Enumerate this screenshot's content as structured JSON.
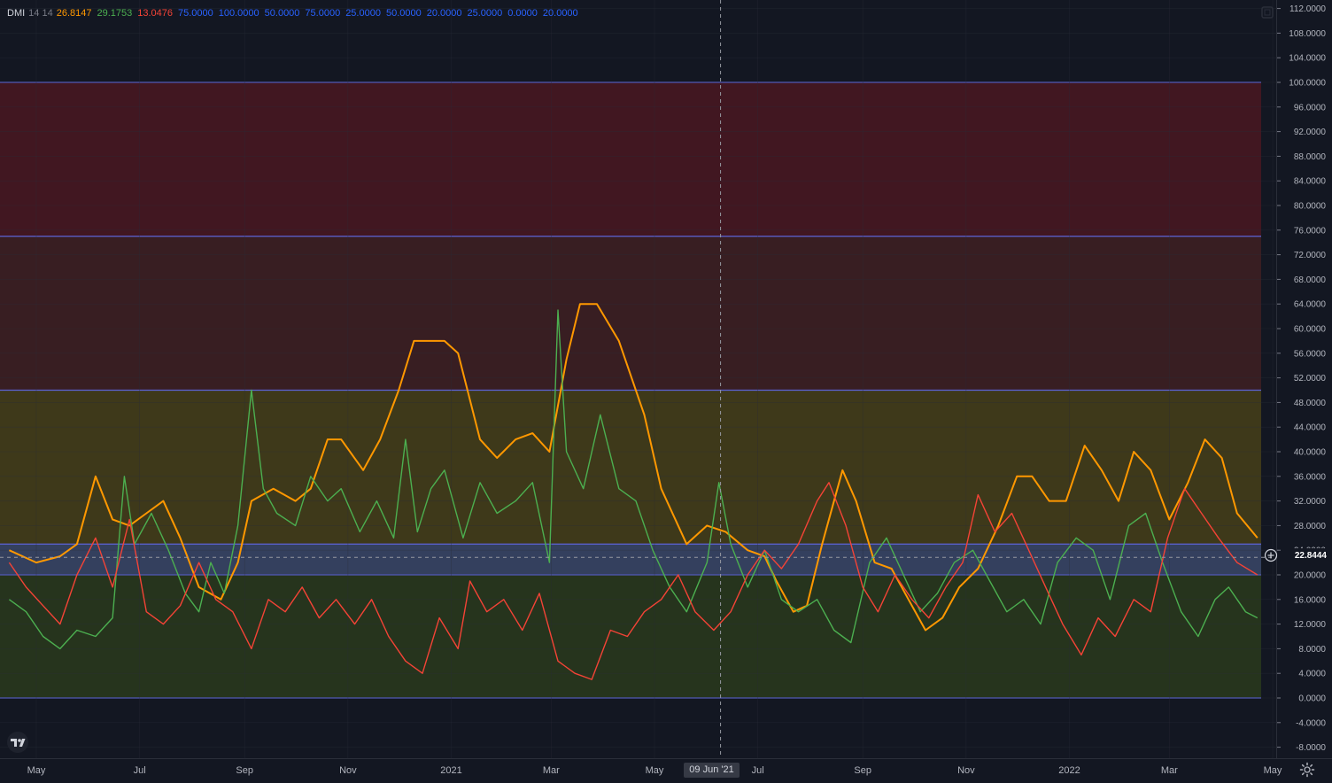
{
  "legend": {
    "indicator": "DMI",
    "params": "14 14",
    "values": [
      {
        "text": "26.8147",
        "color": "#ff9800"
      },
      {
        "text": "29.1753",
        "color": "#4caf50"
      },
      {
        "text": "13.0476",
        "color": "#f44336"
      },
      {
        "text": "75.0000",
        "color": "#2962ff"
      },
      {
        "text": "100.0000",
        "color": "#2962ff"
      },
      {
        "text": "50.0000",
        "color": "#2962ff"
      },
      {
        "text": "75.0000",
        "color": "#2962ff"
      },
      {
        "text": "25.0000",
        "color": "#2962ff"
      },
      {
        "text": "50.0000",
        "color": "#2962ff"
      },
      {
        "text": "20.0000",
        "color": "#2962ff"
      },
      {
        "text": "25.0000",
        "color": "#2962ff"
      },
      {
        "text": "0.0000",
        "color": "#2962ff"
      },
      {
        "text": "20.0000",
        "color": "#2962ff"
      }
    ]
  },
  "cursor": {
    "date_label": "09 Jun '21"
  },
  "last_value_label": "22.8444",
  "chart_data": {
    "type": "line",
    "x_range": [
      "2020-04-15",
      "2022-05-01"
    ],
    "ylim": [
      -9,
      113
    ],
    "y_ticks": [
      112,
      108,
      104,
      100,
      96,
      92,
      88,
      84,
      80,
      76,
      72,
      68,
      64,
      60,
      56,
      52,
      48,
      44,
      40,
      36,
      32,
      28,
      24,
      20,
      16,
      12,
      8,
      4,
      0,
      -4,
      -8
    ],
    "x_ticks": [
      {
        "label": "May",
        "date": "2020-05-01"
      },
      {
        "label": "Jul",
        "date": "2020-07-01"
      },
      {
        "label": "Sep",
        "date": "2020-09-01"
      },
      {
        "label": "Nov",
        "date": "2020-11-01"
      },
      {
        "label": "2021",
        "date": "2021-01-01"
      },
      {
        "label": "Mar",
        "date": "2021-03-01"
      },
      {
        "label": "May",
        "date": "2021-05-01"
      },
      {
        "label": "Jul",
        "date": "2021-07-01"
      },
      {
        "label": "Sep",
        "date": "2021-09-01"
      },
      {
        "label": "Nov",
        "date": "2021-11-01"
      },
      {
        "label": "2022",
        "date": "2022-01-01"
      },
      {
        "label": "Mar",
        "date": "2022-03-01"
      },
      {
        "label": "May",
        "date": "2022-05-01"
      }
    ],
    "cursor_date": "2021-06-09",
    "bands": [
      {
        "from": 75,
        "to": 100,
        "color": "#801922",
        "opacity": 0.42
      },
      {
        "from": 50,
        "to": 75,
        "color": "#8a2e22",
        "opacity": 0.32
      },
      {
        "from": 25,
        "to": 50,
        "color": "#7a6a10",
        "opacity": 0.42
      },
      {
        "from": 20,
        "to": 25,
        "color": "#5d74a8",
        "opacity": 0.45
      },
      {
        "from": 0,
        "to": 20,
        "color": "#4a6b15",
        "opacity": 0.35
      }
    ],
    "band_lines": [
      100,
      75,
      50,
      25,
      20,
      0
    ],
    "series": [
      {
        "color": "#ff9800",
        "points": [
          [
            "2020-04-15",
            24
          ],
          [
            "2020-05-01",
            22
          ],
          [
            "2020-05-15",
            23
          ],
          [
            "2020-05-25",
            25
          ],
          [
            "2020-06-05",
            36
          ],
          [
            "2020-06-15",
            29
          ],
          [
            "2020-06-25",
            28
          ],
          [
            "2020-07-05",
            30
          ],
          [
            "2020-07-15",
            32
          ],
          [
            "2020-07-25",
            26
          ],
          [
            "2020-08-05",
            18
          ],
          [
            "2020-08-18",
            16
          ],
          [
            "2020-08-28",
            22
          ],
          [
            "2020-09-05",
            32
          ],
          [
            "2020-09-18",
            34
          ],
          [
            "2020-10-01",
            32
          ],
          [
            "2020-10-10",
            34
          ],
          [
            "2020-10-20",
            42
          ],
          [
            "2020-10-28",
            42
          ],
          [
            "2020-11-10",
            37
          ],
          [
            "2020-11-20",
            42
          ],
          [
            "2020-12-01",
            50
          ],
          [
            "2020-12-10",
            58
          ],
          [
            "2020-12-18",
            58
          ],
          [
            "2020-12-28",
            58
          ],
          [
            "2021-01-05",
            56
          ],
          [
            "2021-01-18",
            42
          ],
          [
            "2021-01-28",
            39
          ],
          [
            "2021-02-08",
            42
          ],
          [
            "2021-02-18",
            43
          ],
          [
            "2021-02-28",
            40
          ],
          [
            "2021-03-10",
            55
          ],
          [
            "2021-03-18",
            64
          ],
          [
            "2021-03-28",
            64
          ],
          [
            "2021-04-10",
            58
          ],
          [
            "2021-04-25",
            46
          ],
          [
            "2021-05-05",
            34
          ],
          [
            "2021-05-20",
            25
          ],
          [
            "2021-06-01",
            28
          ],
          [
            "2021-06-12",
            27
          ],
          [
            "2021-06-25",
            24
          ],
          [
            "2021-07-05",
            23
          ],
          [
            "2021-07-12",
            19
          ],
          [
            "2021-07-22",
            14
          ],
          [
            "2021-07-30",
            15
          ],
          [
            "2021-08-08",
            25
          ],
          [
            "2021-08-20",
            37
          ],
          [
            "2021-08-28",
            32
          ],
          [
            "2021-09-08",
            22
          ],
          [
            "2021-09-18",
            21
          ],
          [
            "2021-09-28",
            16
          ],
          [
            "2021-10-08",
            11
          ],
          [
            "2021-10-18",
            13
          ],
          [
            "2021-10-28",
            18
          ],
          [
            "2021-11-08",
            21
          ],
          [
            "2021-11-20",
            28
          ],
          [
            "2021-12-01",
            36
          ],
          [
            "2021-12-10",
            36
          ],
          [
            "2021-12-20",
            32
          ],
          [
            "2021-12-30",
            32
          ],
          [
            "2022-01-10",
            41
          ],
          [
            "2022-01-20",
            37
          ],
          [
            "2022-01-30",
            32
          ],
          [
            "2022-02-08",
            40
          ],
          [
            "2022-02-18",
            37
          ],
          [
            "2022-03-01",
            29
          ],
          [
            "2022-03-12",
            35
          ],
          [
            "2022-03-22",
            42
          ],
          [
            "2022-04-01",
            39
          ],
          [
            "2022-04-10",
            30
          ],
          [
            "2022-04-22",
            26
          ]
        ]
      },
      {
        "color": "#4caf50",
        "points": [
          [
            "2020-04-15",
            16
          ],
          [
            "2020-04-25",
            14
          ],
          [
            "2020-05-05",
            10
          ],
          [
            "2020-05-15",
            8
          ],
          [
            "2020-05-25",
            11
          ],
          [
            "2020-06-05",
            10
          ],
          [
            "2020-06-15",
            13
          ],
          [
            "2020-06-22",
            36
          ],
          [
            "2020-06-28",
            25
          ],
          [
            "2020-07-08",
            30
          ],
          [
            "2020-07-18",
            24
          ],
          [
            "2020-07-28",
            17
          ],
          [
            "2020-08-05",
            14
          ],
          [
            "2020-08-12",
            22
          ],
          [
            "2020-08-20",
            17
          ],
          [
            "2020-08-28",
            28
          ],
          [
            "2020-09-05",
            50
          ],
          [
            "2020-09-12",
            34
          ],
          [
            "2020-09-20",
            30
          ],
          [
            "2020-10-01",
            28
          ],
          [
            "2020-10-10",
            36
          ],
          [
            "2020-10-20",
            32
          ],
          [
            "2020-10-28",
            34
          ],
          [
            "2020-11-08",
            27
          ],
          [
            "2020-11-18",
            32
          ],
          [
            "2020-11-28",
            26
          ],
          [
            "2020-12-05",
            42
          ],
          [
            "2020-12-12",
            27
          ],
          [
            "2020-12-20",
            34
          ],
          [
            "2020-12-28",
            37
          ],
          [
            "2021-01-08",
            26
          ],
          [
            "2021-01-18",
            35
          ],
          [
            "2021-01-28",
            30
          ],
          [
            "2021-02-08",
            32
          ],
          [
            "2021-02-18",
            35
          ],
          [
            "2021-02-28",
            22
          ],
          [
            "2021-03-05",
            63
          ],
          [
            "2021-03-10",
            40
          ],
          [
            "2021-03-20",
            34
          ],
          [
            "2021-03-30",
            46
          ],
          [
            "2021-04-10",
            34
          ],
          [
            "2021-04-20",
            32
          ],
          [
            "2021-04-30",
            24
          ],
          [
            "2021-05-10",
            18
          ],
          [
            "2021-05-20",
            14
          ],
          [
            "2021-06-01",
            22
          ],
          [
            "2021-06-08",
            35
          ],
          [
            "2021-06-15",
            25
          ],
          [
            "2021-06-25",
            18
          ],
          [
            "2021-07-05",
            24
          ],
          [
            "2021-07-15",
            16
          ],
          [
            "2021-07-25",
            14
          ],
          [
            "2021-08-05",
            16
          ],
          [
            "2021-08-15",
            11
          ],
          [
            "2021-08-25",
            9
          ],
          [
            "2021-09-05",
            22
          ],
          [
            "2021-09-15",
            26
          ],
          [
            "2021-09-25",
            20
          ],
          [
            "2021-10-05",
            14
          ],
          [
            "2021-10-15",
            17
          ],
          [
            "2021-10-25",
            22
          ],
          [
            "2021-11-05",
            24
          ],
          [
            "2021-11-15",
            19
          ],
          [
            "2021-11-25",
            14
          ],
          [
            "2021-12-05",
            16
          ],
          [
            "2021-12-15",
            12
          ],
          [
            "2021-12-25",
            22
          ],
          [
            "2022-01-05",
            26
          ],
          [
            "2022-01-15",
            24
          ],
          [
            "2022-01-25",
            16
          ],
          [
            "2022-02-05",
            28
          ],
          [
            "2022-02-15",
            30
          ],
          [
            "2022-02-25",
            22
          ],
          [
            "2022-03-08",
            14
          ],
          [
            "2022-03-18",
            10
          ],
          [
            "2022-03-28",
            16
          ],
          [
            "2022-04-05",
            18
          ],
          [
            "2022-04-15",
            14
          ],
          [
            "2022-04-22",
            13
          ]
        ]
      },
      {
        "color": "#f44336",
        "points": [
          [
            "2020-04-15",
            22
          ],
          [
            "2020-04-25",
            18
          ],
          [
            "2020-05-05",
            15
          ],
          [
            "2020-05-15",
            12
          ],
          [
            "2020-05-25",
            20
          ],
          [
            "2020-06-05",
            26
          ],
          [
            "2020-06-15",
            18
          ],
          [
            "2020-06-25",
            29
          ],
          [
            "2020-07-05",
            14
          ],
          [
            "2020-07-15",
            12
          ],
          [
            "2020-07-25",
            15
          ],
          [
            "2020-08-05",
            22
          ],
          [
            "2020-08-15",
            16
          ],
          [
            "2020-08-25",
            14
          ],
          [
            "2020-09-05",
            8
          ],
          [
            "2020-09-15",
            16
          ],
          [
            "2020-09-25",
            14
          ],
          [
            "2020-10-05",
            18
          ],
          [
            "2020-10-15",
            13
          ],
          [
            "2020-10-25",
            16
          ],
          [
            "2020-11-05",
            12
          ],
          [
            "2020-11-15",
            16
          ],
          [
            "2020-11-25",
            10
          ],
          [
            "2020-12-05",
            6
          ],
          [
            "2020-12-15",
            4
          ],
          [
            "2020-12-25",
            13
          ],
          [
            "2021-01-05",
            8
          ],
          [
            "2021-01-12",
            19
          ],
          [
            "2021-01-22",
            14
          ],
          [
            "2021-02-01",
            16
          ],
          [
            "2021-02-12",
            11
          ],
          [
            "2021-02-22",
            17
          ],
          [
            "2021-03-05",
            6
          ],
          [
            "2021-03-15",
            4
          ],
          [
            "2021-03-25",
            3
          ],
          [
            "2021-04-05",
            11
          ],
          [
            "2021-04-15",
            10
          ],
          [
            "2021-04-25",
            14
          ],
          [
            "2021-05-05",
            16
          ],
          [
            "2021-05-15",
            20
          ],
          [
            "2021-05-25",
            14
          ],
          [
            "2021-06-05",
            11
          ],
          [
            "2021-06-15",
            14
          ],
          [
            "2021-06-25",
            20
          ],
          [
            "2021-07-05",
            24
          ],
          [
            "2021-07-15",
            21
          ],
          [
            "2021-07-25",
            25
          ],
          [
            "2021-08-05",
            32
          ],
          [
            "2021-08-12",
            35
          ],
          [
            "2021-08-22",
            28
          ],
          [
            "2021-09-01",
            18
          ],
          [
            "2021-09-10",
            14
          ],
          [
            "2021-09-20",
            20
          ],
          [
            "2021-09-30",
            16
          ],
          [
            "2021-10-10",
            13
          ],
          [
            "2021-10-20",
            18
          ],
          [
            "2021-10-30",
            22
          ],
          [
            "2021-11-08",
            33
          ],
          [
            "2021-11-18",
            27
          ],
          [
            "2021-11-28",
            30
          ],
          [
            "2021-12-08",
            24
          ],
          [
            "2021-12-18",
            18
          ],
          [
            "2021-12-28",
            12
          ],
          [
            "2022-01-08",
            7
          ],
          [
            "2022-01-18",
            13
          ],
          [
            "2022-01-28",
            10
          ],
          [
            "2022-02-08",
            16
          ],
          [
            "2022-02-18",
            14
          ],
          [
            "2022-02-28",
            26
          ],
          [
            "2022-03-10",
            34
          ],
          [
            "2022-03-20",
            30
          ],
          [
            "2022-03-30",
            26
          ],
          [
            "2022-04-10",
            22
          ],
          [
            "2022-04-22",
            20
          ]
        ]
      }
    ]
  }
}
